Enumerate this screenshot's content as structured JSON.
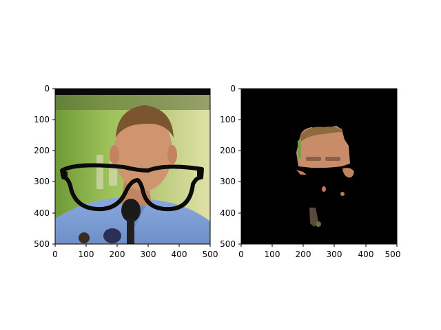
{
  "panels": [
    {
      "name": "left-image-panel",
      "content": "photo-with-glasses-overlay",
      "x_ticks": [
        "0",
        "100",
        "200",
        "300",
        "400",
        "500"
      ],
      "y_ticks": [
        "0",
        "100",
        "200",
        "300",
        "400",
        "500"
      ]
    },
    {
      "name": "right-image-panel",
      "content": "segmentation-mask",
      "x_ticks": [
        "0",
        "100",
        "200",
        "300",
        "400",
        "500"
      ],
      "y_ticks": [
        "0",
        "100",
        "200",
        "300",
        "400",
        "500"
      ]
    }
  ],
  "colors": {
    "frame": "#000000",
    "background_green": "#8fb04a",
    "shirt_blue": "#7f9dd3",
    "skin": "#c98f6a",
    "hair": "#7a5530",
    "mask_background": "#000000"
  }
}
